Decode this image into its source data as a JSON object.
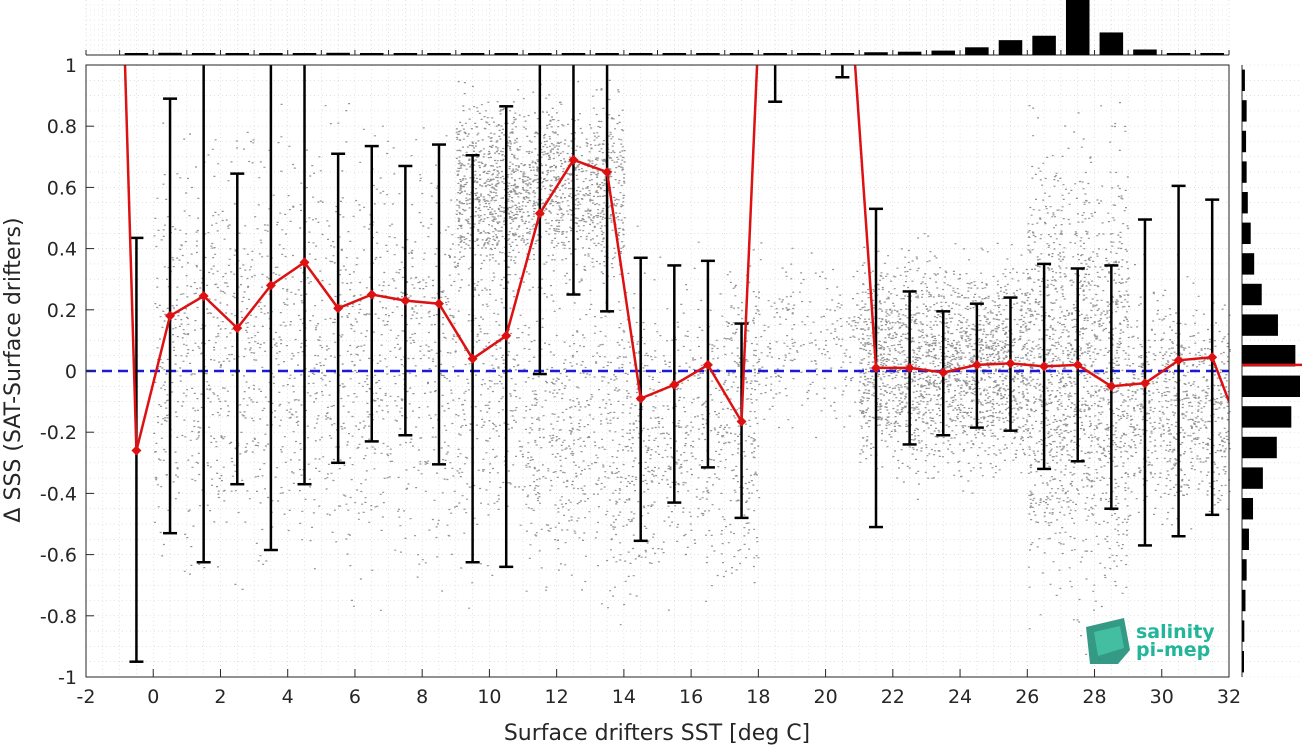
{
  "chart_data": {
    "type": "scatter",
    "xlabel": "Surface drifters SST [deg C]",
    "ylabel": "Δ SSS (SAT-Surface drifters)",
    "xlim": [
      -2,
      32
    ],
    "ylim": [
      -1,
      1
    ],
    "xticks": [
      -2,
      0,
      2,
      4,
      6,
      8,
      10,
      12,
      14,
      16,
      18,
      20,
      22,
      24,
      26,
      28,
      30,
      32
    ],
    "yticks": [
      -1,
      -0.8,
      -0.6,
      -0.4,
      -0.2,
      0,
      0.2,
      0.4,
      0.6,
      0.8,
      1
    ],
    "grid": true,
    "reference_line": {
      "y": 0,
      "color": "#1a1adb",
      "style": "dashed"
    },
    "series": [
      {
        "role": "binned-mean",
        "color": "#dd1111",
        "marker": "diamond",
        "x": [
          -0.5,
          0.5,
          1.5,
          2.5,
          3.5,
          4.5,
          5.5,
          6.5,
          7.5,
          8.5,
          9.5,
          10.5,
          11.5,
          12.5,
          13.5,
          14.5,
          15.5,
          16.5,
          17.5,
          21.5,
          22.5,
          23.5,
          24.5,
          25.5,
          26.5,
          27.5,
          28.5,
          29.5,
          30.5,
          31.5
        ],
        "y": [
          -0.26,
          0.18,
          0.245,
          0.14,
          0.28,
          0.355,
          0.205,
          0.25,
          0.23,
          0.22,
          0.04,
          0.115,
          0.515,
          0.69,
          0.65,
          -0.09,
          -0.045,
          0.02,
          -0.165,
          0.01,
          0.01,
          -0.005,
          0.02,
          0.025,
          0.015,
          0.02,
          -0.05,
          -0.04,
          0.035,
          0.045
        ],
        "err_low": [
          -0.95,
          -0.53,
          -0.625,
          -0.37,
          -0.585,
          -0.37,
          -0.3,
          -0.23,
          -0.21,
          -0.305,
          -0.625,
          -0.64,
          -0.01,
          0.25,
          0.195,
          -0.555,
          -0.43,
          -0.315,
          -0.48,
          -0.51,
          -0.24,
          -0.21,
          -0.185,
          -0.195,
          -0.32,
          -0.295,
          -0.45,
          -0.57,
          -0.54,
          -0.47
        ],
        "err_high": [
          0.435,
          0.89,
          1.0,
          0.645,
          1.0,
          1.0,
          0.71,
          0.735,
          0.67,
          0.74,
          0.705,
          0.865,
          1.0,
          1.0,
          1.0,
          0.37,
          0.345,
          0.36,
          0.155,
          0.53,
          0.26,
          0.195,
          0.22,
          0.24,
          0.35,
          0.335,
          0.345,
          0.495,
          0.605,
          0.56
        ]
      },
      {
        "role": "out-of-range-continuation",
        "x": [
          -1.0,
          18.2,
          20.5,
          21.5,
          32.0
        ],
        "y": [
          1.0,
          1.0,
          1.0,
          0.01,
          -0.1
        ]
      }
    ],
    "top_histogram": {
      "bins_x": [
        -0.5,
        0.5,
        1.5,
        2.5,
        3.5,
        4.5,
        5.5,
        6.5,
        7.5,
        8.5,
        9.5,
        10.5,
        11.5,
        12.5,
        13.5,
        14.5,
        15.5,
        16.5,
        17.5,
        18.5,
        19.5,
        20.5,
        21.5,
        22.5,
        23.5,
        24.5,
        25.5,
        26.5,
        27.5,
        28.5,
        29.5,
        30.5,
        31.5
      ],
      "counts": [
        0.02,
        0.04,
        0.03,
        0.03,
        0.03,
        0.03,
        0.04,
        0.03,
        0.03,
        0.03,
        0.02,
        0.02,
        0.02,
        0.02,
        0.02,
        0.02,
        0.02,
        0.02,
        0.02,
        0.01,
        0.01,
        0.01,
        0.05,
        0.06,
        0.08,
        0.14,
        0.27,
        0.35,
        1.0,
        0.41,
        0.1,
        0.03,
        0.01
      ]
    },
    "right_histogram": {
      "bins_y": [
        0.95,
        0.85,
        0.75,
        0.65,
        0.55,
        0.45,
        0.35,
        0.25,
        0.15,
        0.05,
        -0.05,
        -0.15,
        -0.25,
        -0.35,
        -0.45,
        -0.55,
        -0.65,
        -0.75,
        -0.85,
        -0.95
      ],
      "counts": [
        0.05,
        0.08,
        0.07,
        0.08,
        0.1,
        0.15,
        0.21,
        0.34,
        0.62,
        0.92,
        1.0,
        0.85,
        0.6,
        0.36,
        0.19,
        0.12,
        0.08,
        0.06,
        0.04,
        0.03
      ],
      "median_line_y": 0.02
    },
    "scatter_cloud": {
      "color": "#808080",
      "description_regions": [
        {
          "x": [
            0,
            11
          ],
          "y": [
            -0.9,
            1.0
          ],
          "density": 0.35
        },
        {
          "x": [
            9,
            14
          ],
          "y": [
            0.2,
            1.0
          ],
          "density": 0.6
        },
        {
          "x": [
            11,
            18
          ],
          "y": [
            -0.9,
            0.5
          ],
          "density": 0.35
        },
        {
          "x": [
            17,
            21
          ],
          "y": [
            -0.3,
            0.5
          ],
          "density": 0.15
        },
        {
          "x": [
            21,
            26
          ],
          "y": [
            -0.45,
            0.5
          ],
          "density": 0.8
        },
        {
          "x": [
            26,
            29
          ],
          "y": [
            -1.0,
            1.0
          ],
          "density": 1.0
        },
        {
          "x": [
            29,
            32
          ],
          "y": [
            -0.6,
            0.4
          ],
          "density": 0.5
        }
      ]
    }
  },
  "logo": {
    "line1": "salinity",
    "line2": "pi-mep"
  }
}
